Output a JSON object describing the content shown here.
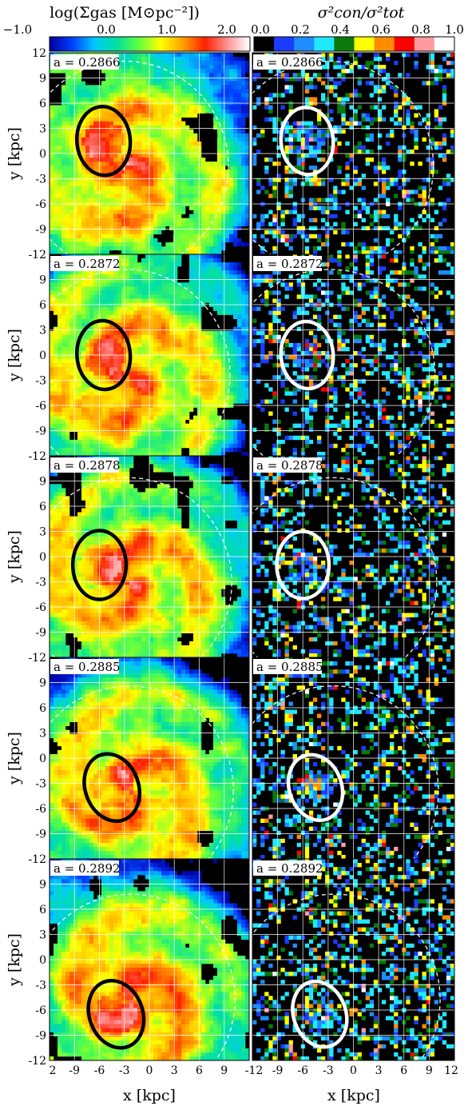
{
  "chart_data": {
    "type": "heatmap",
    "layout": "5 rows x 2 columns of panels sharing x and y axes",
    "colorbars": [
      {
        "label": "log(Σgas [M⊙pc⁻²])",
        "range": [
          -1.0,
          2.5
        ],
        "tick_values": [
          -1.0,
          0.0,
          1.0,
          2.0
        ],
        "tick_labels": [
          "−1.0",
          "0.0",
          "1.0",
          "2.0"
        ],
        "colormap": "continuous jet-like",
        "stops": [
          "#0000a0",
          "#0040ff",
          "#00c8ff",
          "#00e0a0",
          "#60ff40",
          "#ffff00",
          "#ffa000",
          "#ff2000",
          "#ff9090",
          "#ffffff"
        ]
      },
      {
        "label": "σ²con/σ²tot",
        "range": [
          0.0,
          1.0
        ],
        "tick_values": [
          0.0,
          0.2,
          0.4,
          0.6,
          0.8,
          1.0
        ],
        "tick_labels": [
          "0.0",
          "0.2",
          "0.4",
          "0.6",
          "0.8",
          "1.0"
        ],
        "colormap": "discrete, 10 bins",
        "bins": [
          "#000000",
          "#1b3cff",
          "#1f8cff",
          "#20e8ff",
          "#0a7a0a",
          "#ffff00",
          "#ff8c00",
          "#ff0000",
          "#ff9aa0",
          "#ffffff"
        ]
      }
    ],
    "xlabel": "x [kpc]",
    "ylabel": "y [kpc]",
    "xlim": [
      -12,
      12
    ],
    "ylim": [
      -12,
      12
    ],
    "x_tick_labels_left": [
      "2",
      "-9",
      "-6",
      "-3",
      "0",
      "3",
      "6",
      "9"
    ],
    "x_tick_labels_right": [
      "-12",
      "-9",
      "-6",
      "-3",
      "0",
      "3",
      "6",
      "9",
      "12"
    ],
    "y_tick_labels": [
      "12",
      "9",
      "6",
      "3",
      "0",
      "-3",
      "-6",
      "-9",
      "-12"
    ],
    "grid": true,
    "panels": [
      {
        "a_label": "a = 0.2866",
        "ellipse_center": [
          -5.5,
          1.5
        ]
      },
      {
        "a_label": "a = 0.2872",
        "ellipse_center": [
          -5.5,
          0.0
        ]
      },
      {
        "a_label": "a = 0.2878",
        "ellipse_center": [
          -6.0,
          -1.0
        ]
      },
      {
        "a_label": "a = 0.2885",
        "ellipse_center": [
          -4.5,
          -3.5
        ]
      },
      {
        "a_label": "a = 0.2892",
        "ellipse_center": [
          -4.0,
          -6.5
        ]
      }
    ]
  }
}
